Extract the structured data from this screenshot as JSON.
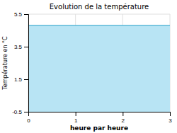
{
  "chart_data": {
    "type": "area",
    "title": "Evolution de la température",
    "x_label": "heure par heure",
    "y_label": "Température en °C",
    "x": [
      0,
      3
    ],
    "series": [
      {
        "type": "area",
        "color": "#b8e4f4",
        "values": [
          4.8,
          4.8
        ]
      },
      {
        "type": "line",
        "color": "#5ab8d8",
        "values": [
          4.8,
          4.8
        ]
      }
    ],
    "xlim": [
      0,
      3
    ],
    "ylim": [
      -0.5,
      5.5
    ],
    "xticks": [
      0,
      1,
      2,
      3
    ],
    "yticks": [
      -0.5,
      1.5,
      3.5,
      5.5
    ],
    "grid": true
  }
}
